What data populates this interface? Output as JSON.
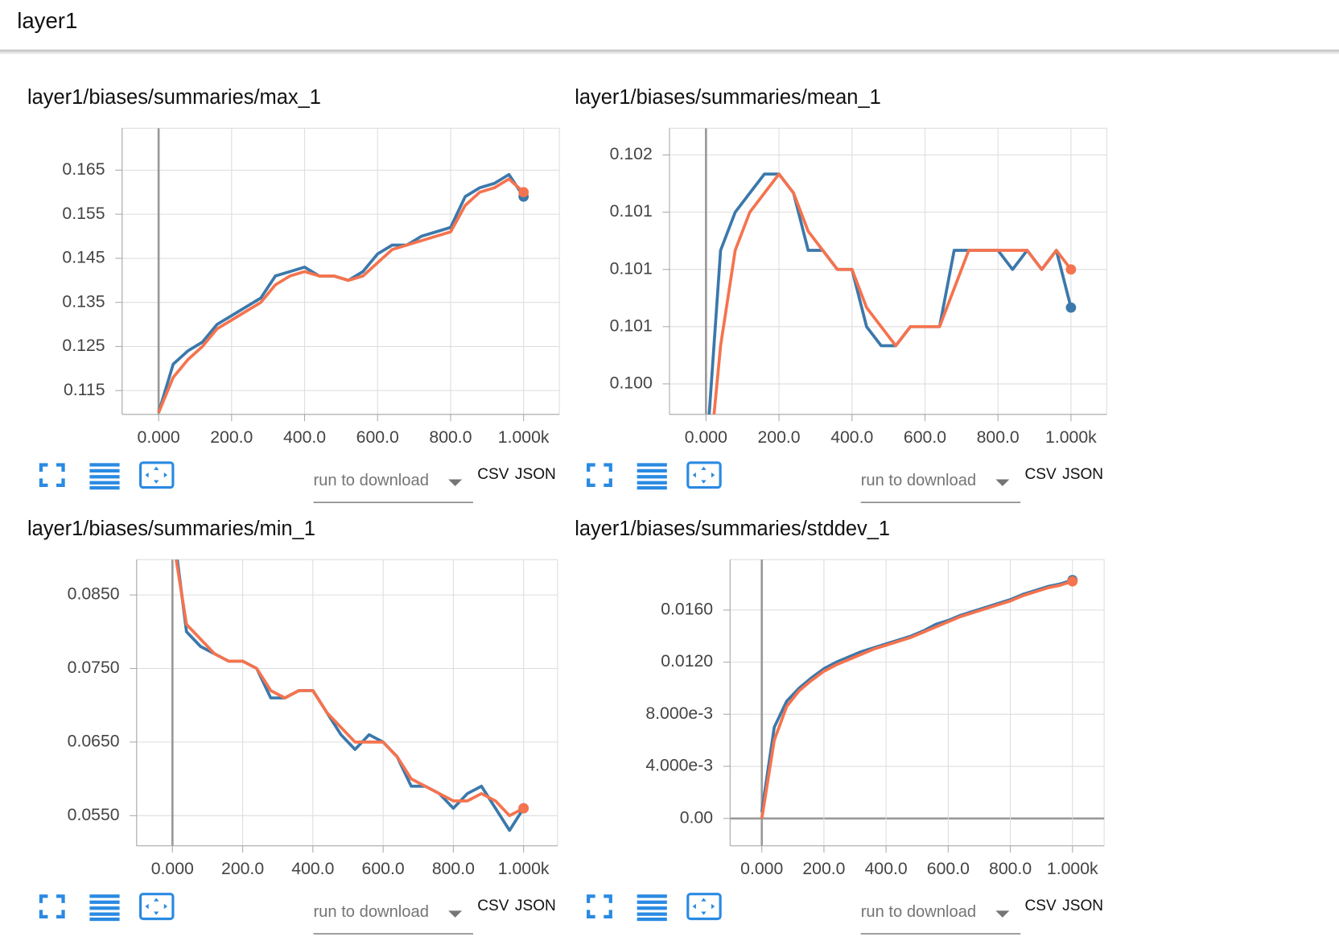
{
  "header": {
    "title": "layer1"
  },
  "controls": {
    "run_select": "run to download",
    "csv": "CSV",
    "json": "JSON"
  },
  "chart_data": [
    {
      "type": "line",
      "title": "layer1/biases/summaries/max_1",
      "x": [
        0,
        40,
        80,
        120,
        160,
        200,
        240,
        280,
        320,
        360,
        400,
        440,
        480,
        520,
        560,
        600,
        640,
        680,
        720,
        760,
        800,
        840,
        880,
        920,
        960,
        1000
      ],
      "series": [
        {
          "color": "#3b78ab",
          "values": [
            0.11,
            0.121,
            0.124,
            0.126,
            0.13,
            0.132,
            0.134,
            0.136,
            0.141,
            0.142,
            0.143,
            0.141,
            0.141,
            0.14,
            0.142,
            0.146,
            0.148,
            0.148,
            0.15,
            0.151,
            0.152,
            0.159,
            0.161,
            0.162,
            0.164,
            0.159
          ]
        },
        {
          "color": "#f5734e",
          "values": [
            0.11,
            0.118,
            0.122,
            0.125,
            0.129,
            0.131,
            0.133,
            0.135,
            0.139,
            0.141,
            0.142,
            0.141,
            0.141,
            0.14,
            0.141,
            0.144,
            0.147,
            0.148,
            0.149,
            0.15,
            0.151,
            0.157,
            0.16,
            0.161,
            0.163,
            0.16
          ]
        }
      ],
      "xlim": [
        -100,
        1098
      ],
      "ylim": [
        0.1096,
        0.1745
      ],
      "xticks": [
        {
          "value": 0,
          "label": "0.000"
        },
        {
          "value": 200,
          "label": "200.0"
        },
        {
          "value": 400,
          "label": "400.0"
        },
        {
          "value": 600,
          "label": "600.0"
        },
        {
          "value": 800,
          "label": "800.0"
        },
        {
          "value": 1000,
          "label": "1.000k"
        }
      ],
      "yticks": [
        0.115,
        0.125,
        0.135,
        0.145,
        0.155,
        0.165
      ],
      "grid": true
    },
    {
      "type": "line",
      "title": "layer1/biases/summaries/mean_1",
      "x": [
        0,
        40,
        80,
        120,
        160,
        200,
        240,
        280,
        320,
        360,
        400,
        440,
        480,
        520,
        560,
        600,
        640,
        680,
        720,
        760,
        800,
        840,
        880,
        920,
        960,
        1000
      ],
      "series": [
        {
          "color": "#3b78ab",
          "values": [
            0.1,
            0.1011,
            0.1013,
            0.1014,
            0.1015,
            0.1015,
            0.1014,
            0.1011,
            0.1011,
            0.101,
            0.101,
            0.1007,
            0.1006,
            0.1006,
            0.1007,
            0.1007,
            0.1007,
            0.1011,
            0.1011,
            0.1011,
            0.1011,
            0.101,
            0.1011,
            0.101,
            0.1011,
            0.1008
          ]
        },
        {
          "color": "#f5734e",
          "values": [
            0.0998,
            0.1006,
            0.1011,
            0.1013,
            0.1014,
            0.1015,
            0.1014,
            0.1012,
            0.1011,
            0.101,
            0.101,
            0.1008,
            0.1007,
            0.1006,
            0.1007,
            0.1007,
            0.1007,
            0.1009,
            0.1011,
            0.1011,
            0.1011,
            0.1011,
            0.1011,
            0.101,
            0.1011,
            0.101
          ]
        }
      ],
      "xlim": [
        -100,
        1098
      ],
      "ylim": [
        0.10024,
        0.10174
      ],
      "xticks": [
        {
          "value": 0,
          "label": "0.000"
        },
        {
          "value": 200,
          "label": "200.0"
        },
        {
          "value": 400,
          "label": "400.0"
        },
        {
          "value": 600,
          "label": "600.0"
        },
        {
          "value": 800,
          "label": "800.0"
        },
        {
          "value": 1000,
          "label": "1.000k"
        }
      ],
      "yticks": [
        {
          "value": 0.1004,
          "label": "0.100"
        },
        {
          "value": 0.1007,
          "label": "0.101"
        },
        {
          "value": 0.101,
          "label": "0.101"
        },
        {
          "value": 0.1013,
          "label": "0.101"
        },
        {
          "value": 0.1016,
          "label": "0.102"
        }
      ],
      "grid": true
    },
    {
      "type": "line",
      "title": "layer1/biases/summaries/min_1",
      "x": [
        0,
        40,
        80,
        120,
        160,
        200,
        240,
        280,
        320,
        360,
        400,
        440,
        480,
        520,
        560,
        600,
        640,
        680,
        720,
        760,
        800,
        840,
        880,
        920,
        960,
        1000
      ],
      "series": [
        {
          "color": "#3b78ab",
          "values": [
            0.095,
            0.08,
            0.078,
            0.077,
            0.076,
            0.076,
            0.075,
            0.071,
            0.071,
            0.072,
            0.072,
            0.069,
            0.066,
            0.064,
            0.066,
            0.065,
            0.063,
            0.059,
            0.059,
            0.058,
            0.056,
            0.058,
            0.059,
            0.056,
            0.053,
            0.056
          ]
        },
        {
          "color": "#f5734e",
          "values": [
            0.093,
            0.081,
            0.079,
            0.077,
            0.076,
            0.076,
            0.075,
            0.072,
            0.071,
            0.072,
            0.072,
            0.069,
            0.067,
            0.065,
            0.065,
            0.065,
            0.063,
            0.06,
            0.059,
            0.058,
            0.057,
            0.057,
            0.058,
            0.057,
            0.055,
            0.056
          ]
        }
      ],
      "xlim": [
        -102,
        1097
      ],
      "ylim": [
        0.0509,
        0.0898
      ],
      "xticks": [
        {
          "value": 0,
          "label": "0.000"
        },
        {
          "value": 200,
          "label": "200.0"
        },
        {
          "value": 400,
          "label": "400.0"
        },
        {
          "value": 600,
          "label": "600.0"
        },
        {
          "value": 800,
          "label": "800.0"
        },
        {
          "value": 1000,
          "label": "1.000k"
        }
      ],
      "yticks": [
        {
          "value": 0.055,
          "label": "0.0550"
        },
        {
          "value": 0.065,
          "label": "0.0650"
        },
        {
          "value": 0.075,
          "label": "0.0750"
        },
        {
          "value": 0.085,
          "label": "0.0850"
        }
      ],
      "grid": true
    },
    {
      "type": "line",
      "title": "layer1/biases/summaries/stddev_1",
      "x": [
        0,
        40,
        80,
        120,
        160,
        200,
        240,
        280,
        320,
        360,
        400,
        440,
        480,
        520,
        560,
        600,
        640,
        680,
        720,
        760,
        800,
        840,
        880,
        920,
        960,
        1000
      ],
      "series": [
        {
          "color": "#3b78ab",
          "values": [
            0.0005,
            0.007,
            0.009,
            0.01,
            0.0108,
            0.0115,
            0.012,
            0.0124,
            0.0128,
            0.0131,
            0.0134,
            0.0137,
            0.014,
            0.0144,
            0.0149,
            0.0152,
            0.0156,
            0.0159,
            0.0162,
            0.0165,
            0.0168,
            0.0172,
            0.0175,
            0.0178,
            0.018,
            0.0183
          ]
        },
        {
          "color": "#f5734e",
          "values": [
            0.0,
            0.006,
            0.0086,
            0.0098,
            0.0106,
            0.0113,
            0.0118,
            0.0122,
            0.0126,
            0.013,
            0.0133,
            0.0136,
            0.0139,
            0.0143,
            0.0147,
            0.0151,
            0.0155,
            0.0158,
            0.0161,
            0.0164,
            0.0167,
            0.0171,
            0.0174,
            0.0177,
            0.0179,
            0.0182
          ]
        }
      ],
      "xlim": [
        -102,
        1102
      ],
      "ylim": [
        -0.0021,
        0.01987
      ],
      "xticks": [
        {
          "value": 0,
          "label": "0.000"
        },
        {
          "value": 200,
          "label": "200.0"
        },
        {
          "value": 400,
          "label": "400.0"
        },
        {
          "value": 600,
          "label": "600.0"
        },
        {
          "value": 800,
          "label": "800.0"
        },
        {
          "value": 1000,
          "label": "1.000k"
        }
      ],
      "yticks": [
        {
          "value": 0,
          "label": "0.00"
        },
        {
          "value": 0.004,
          "label": "4.000e-3"
        },
        {
          "value": 0.008,
          "label": "8.000e-3"
        },
        {
          "value": 0.012,
          "label": "0.0120"
        },
        {
          "value": 0.016,
          "label": "0.0160"
        }
      ],
      "grid": true
    }
  ]
}
